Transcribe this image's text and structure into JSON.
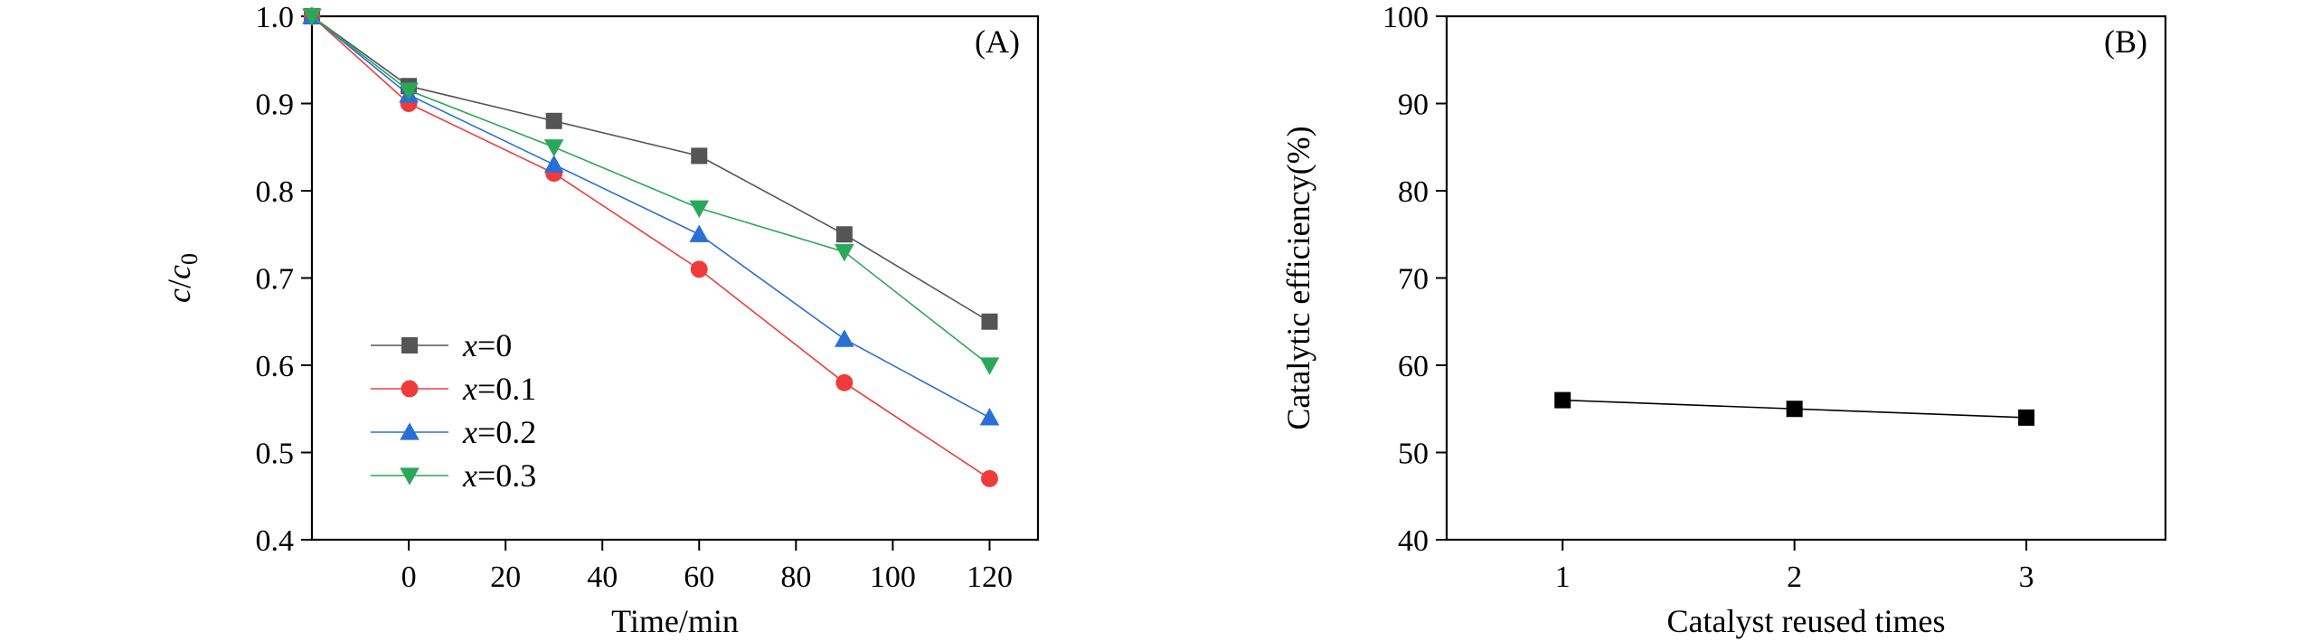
{
  "chart_data": [
    {
      "type": "line",
      "panel_label": "(A)",
      "xlabel": "Time/min",
      "ylabel": {
        "italic1": "c",
        "slash": "/",
        "italic2": "c",
        "sub": "0"
      },
      "xlim": [
        -20,
        130
      ],
      "ylim": [
        0.4,
        1.0
      ],
      "x_ticks": [
        0,
        20,
        40,
        60,
        80,
        100,
        120
      ],
      "x_tick_labels": [
        "0",
        "20",
        "40",
        "60",
        "80",
        "100",
        "120"
      ],
      "y_ticks": [
        0.4,
        0.5,
        0.6,
        0.7,
        0.8,
        0.9,
        1.0
      ],
      "y_tick_labels": [
        "0.4",
        "0.5",
        "0.6",
        "0.7",
        "0.8",
        "0.9",
        "1.0"
      ],
      "x": [
        -20,
        0,
        30,
        60,
        90,
        120
      ],
      "series": [
        {
          "name": "x=0",
          "name_var": "x",
          "name_value": "=0",
          "color": "#555555",
          "marker": "square",
          "values": [
            1.0,
            0.92,
            0.88,
            0.84,
            0.75,
            0.65
          ]
        },
        {
          "name": "x=0.1",
          "name_var": "x",
          "name_value": "=0.1",
          "color": "#ef3b3b",
          "marker": "circle",
          "values": [
            1.0,
            0.9,
            0.82,
            0.71,
            0.58,
            0.47
          ]
        },
        {
          "name": "x=0.2",
          "name_var": "x",
          "name_value": "=0.2",
          "color": "#2a6fd6",
          "marker": "triangle-up",
          "values": [
            1.0,
            0.91,
            0.83,
            0.75,
            0.63,
            0.54
          ]
        },
        {
          "name": "x=0.3",
          "name_var": "x",
          "name_value": "=0.3",
          "color": "#2aa85a",
          "marker": "triangle-down",
          "values": [
            1.0,
            0.915,
            0.85,
            0.78,
            0.73,
            0.6
          ]
        }
      ],
      "legend_position": "lower-left",
      "grid": false
    },
    {
      "type": "line",
      "panel_label": "(B)",
      "xlabel": "Catalyst reused times",
      "ylabel": "Catalytic efficiency(%)",
      "xlim": [
        0.5,
        3.6
      ],
      "ylim": [
        40,
        100
      ],
      "x_ticks": [
        1,
        2,
        3
      ],
      "x_tick_labels": [
        "1",
        "2",
        "3"
      ],
      "y_ticks": [
        40,
        50,
        60,
        70,
        80,
        90,
        100
      ],
      "y_tick_labels": [
        "40",
        "50",
        "60",
        "70",
        "80",
        "90",
        "100"
      ],
      "x": [
        1,
        2,
        3
      ],
      "series": [
        {
          "color": "#000000",
          "marker": "square",
          "values": [
            56,
            55,
            54
          ]
        }
      ],
      "grid": false
    }
  ]
}
